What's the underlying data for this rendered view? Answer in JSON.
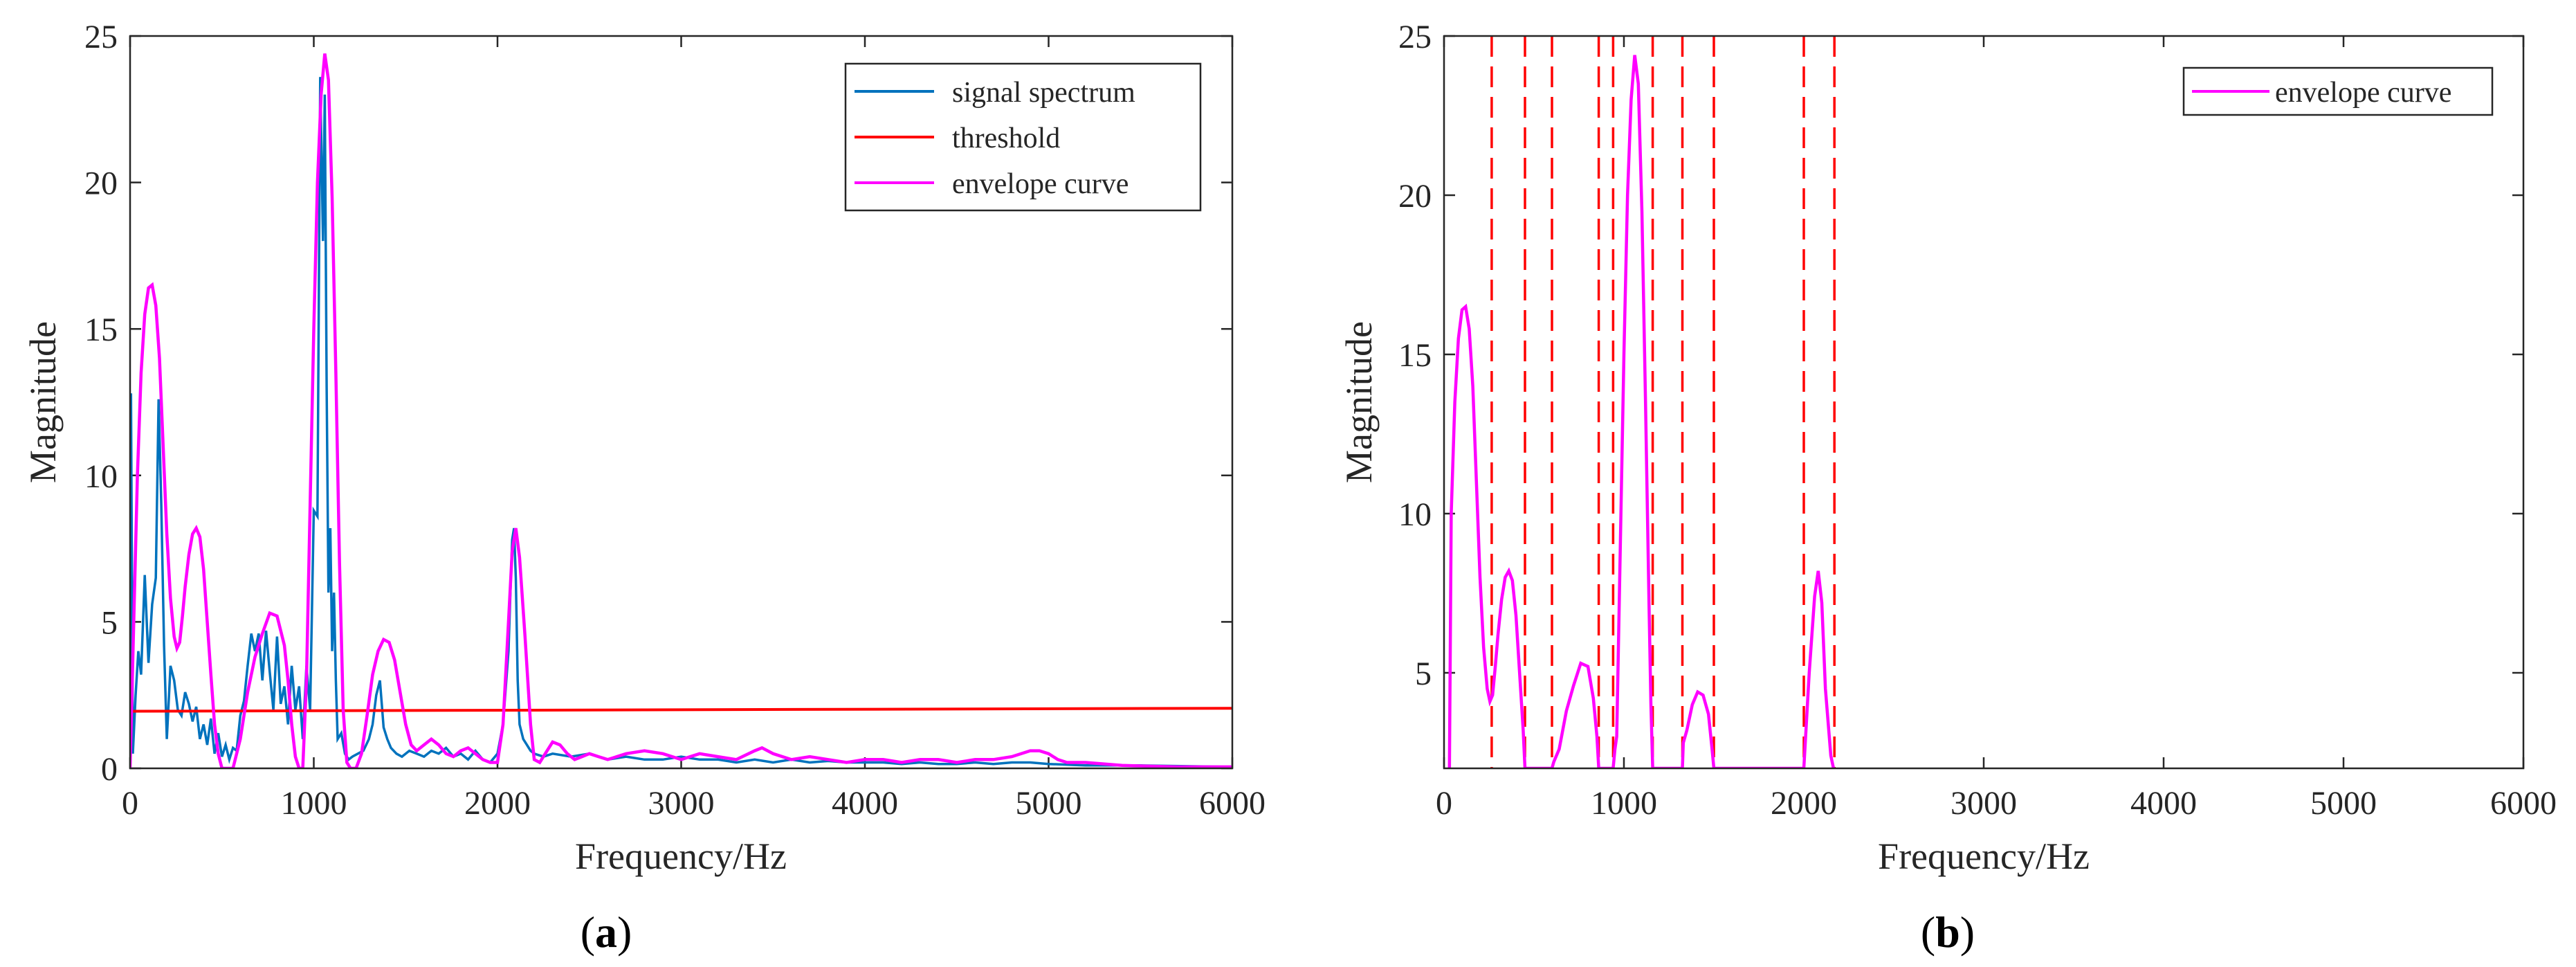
{
  "colors": {
    "spectrum": "#0072BD",
    "threshold": "#FF0000",
    "envelope": "#FF00FF",
    "boundary": "#FF0000",
    "axis": "#262626"
  },
  "chart_data": [
    {
      "type": "line",
      "panel": "a",
      "caption_open": "(",
      "caption_letter": "a",
      "caption_close": ")",
      "xlabel": "Frequency/Hz",
      "ylabel": "Magnitude",
      "xlim": [
        0,
        6000
      ],
      "ylim": [
        0,
        25
      ],
      "xticks": [
        0,
        1000,
        2000,
        3000,
        4000,
        5000,
        6000
      ],
      "yticks": [
        0,
        5,
        10,
        15,
        20,
        25
      ],
      "legend_position": "top-right",
      "legend": [
        "signal spectrum",
        "threshold",
        "envelope curve"
      ],
      "series": [
        {
          "name": "signal spectrum",
          "x": [
            0,
            5,
            15,
            30,
            45,
            60,
            80,
            100,
            120,
            140,
            155,
            170,
            185,
            200,
            220,
            240,
            260,
            280,
            300,
            320,
            340,
            360,
            380,
            400,
            420,
            440,
            460,
            480,
            500,
            520,
            540,
            560,
            580,
            600,
            620,
            640,
            660,
            680,
            700,
            720,
            740,
            760,
            780,
            800,
            820,
            840,
            860,
            880,
            900,
            920,
            940,
            960,
            980,
            1000,
            1020,
            1035,
            1050,
            1060,
            1070,
            1080,
            1090,
            1100,
            1110,
            1120,
            1130,
            1150,
            1170,
            1190,
            1210,
            1240,
            1270,
            1300,
            1320,
            1340,
            1360,
            1380,
            1400,
            1420,
            1450,
            1480,
            1520,
            1560,
            1600,
            1640,
            1680,
            1720,
            1760,
            1800,
            1840,
            1880,
            1920,
            1960,
            2000,
            2030,
            2060,
            2080,
            2090,
            2100,
            2110,
            2120,
            2140,
            2160,
            2180,
            2200,
            2250,
            2300,
            2400,
            2500,
            2600,
            2700,
            2800,
            2900,
            3000,
            3100,
            3200,
            3300,
            3400,
            3500,
            3600,
            3700,
            3800,
            3900,
            4000,
            4100,
            4200,
            4300,
            4400,
            4500,
            4600,
            4700,
            4800,
            4900,
            5000,
            5200,
            5500,
            6000
          ],
          "values": [
            0.3,
            12.8,
            0.5,
            2.5,
            4.0,
            3.2,
            6.6,
            3.6,
            5.6,
            6.5,
            12.6,
            9.0,
            4.2,
            1.0,
            3.5,
            3.0,
            2.0,
            1.8,
            2.6,
            2.2,
            1.6,
            2.1,
            1.0,
            1.5,
            0.8,
            1.7,
            0.5,
            1.2,
            0.4,
            0.8,
            0.3,
            0.7,
            0.6,
            1.8,
            2.3,
            3.5,
            4.6,
            4.0,
            4.6,
            3.0,
            4.7,
            3.3,
            2.0,
            4.5,
            2.2,
            2.8,
            1.5,
            3.5,
            2.0,
            2.8,
            1.0,
            3.5,
            2.0,
            8.8,
            8.6,
            23.6,
            18.0,
            23.0,
            13.0,
            6.0,
            8.2,
            4.0,
            6.0,
            3.0,
            1.0,
            1.2,
            0.5,
            0.3,
            0.4,
            0.5,
            0.6,
            1.0,
            1.5,
            2.5,
            3.0,
            1.4,
            1.0,
            0.7,
            0.5,
            0.4,
            0.6,
            0.5,
            0.4,
            0.6,
            0.5,
            0.7,
            0.4,
            0.5,
            0.3,
            0.6,
            0.3,
            0.2,
            0.5,
            1.5,
            4.0,
            7.8,
            8.2,
            6.5,
            3.0,
            1.5,
            1.0,
            0.8,
            0.6,
            0.5,
            0.4,
            0.5,
            0.4,
            0.5,
            0.3,
            0.4,
            0.3,
            0.3,
            0.4,
            0.3,
            0.3,
            0.2,
            0.3,
            0.2,
            0.3,
            0.2,
            0.25,
            0.2,
            0.2,
            0.2,
            0.15,
            0.2,
            0.15,
            0.15,
            0.2,
            0.15,
            0.2,
            0.2,
            0.15,
            0.1,
            0.1,
            0.05
          ]
        },
        {
          "name": "threshold",
          "x": [
            0,
            6000
          ],
          "values": [
            1.95,
            2.05
          ]
        },
        {
          "name": "envelope curve",
          "x": [
            0,
            20,
            40,
            60,
            80,
            100,
            120,
            140,
            160,
            180,
            200,
            220,
            240,
            255,
            270,
            285,
            300,
            320,
            340,
            360,
            380,
            400,
            420,
            440,
            460,
            480,
            500,
            520,
            560,
            600,
            640,
            680,
            720,
            760,
            800,
            840,
            860,
            880,
            900,
            920,
            940,
            960,
            980,
            1000,
            1020,
            1040,
            1060,
            1080,
            1100,
            1120,
            1140,
            1160,
            1180,
            1200,
            1230,
            1260,
            1290,
            1320,
            1350,
            1380,
            1410,
            1440,
            1470,
            1500,
            1530,
            1560,
            1600,
            1640,
            1680,
            1720,
            1760,
            1800,
            1840,
            1880,
            1920,
            1960,
            2000,
            2030,
            2060,
            2080,
            2100,
            2120,
            2150,
            2180,
            2200,
            2230,
            2260,
            2300,
            2340,
            2380,
            2420,
            2460,
            2500,
            2550,
            2600,
            2700,
            2800,
            2900,
            3000,
            3100,
            3200,
            3300,
            3400,
            3440,
            3500,
            3600,
            3700,
            3800,
            3900,
            4000,
            4100,
            4200,
            4300,
            4400,
            4500,
            4600,
            4700,
            4800,
            4900,
            4950,
            5000,
            5050,
            5100,
            5200,
            5400,
            5700,
            6000
          ],
          "values": [
            0.0,
            5.0,
            10.0,
            13.5,
            15.5,
            16.4,
            16.5,
            15.8,
            14.0,
            11.0,
            8.0,
            5.8,
            4.5,
            4.1,
            4.3,
            5.2,
            6.2,
            7.3,
            8.0,
            8.2,
            7.9,
            6.8,
            5.0,
            3.2,
            1.5,
            0.5,
            0.0,
            0.0,
            0.0,
            1.0,
            2.6,
            3.8,
            4.6,
            5.3,
            5.2,
            4.2,
            3.0,
            1.5,
            0.4,
            0.0,
            0.0,
            3.0,
            9.0,
            15.0,
            20.0,
            23.0,
            24.4,
            23.5,
            19.5,
            13.5,
            7.0,
            2.0,
            0.2,
            0.0,
            0.0,
            0.5,
            1.8,
            3.2,
            4.0,
            4.4,
            4.3,
            3.7,
            2.6,
            1.5,
            0.8,
            0.6,
            0.8,
            1.0,
            0.8,
            0.5,
            0.4,
            0.6,
            0.7,
            0.5,
            0.3,
            0.2,
            0.2,
            1.5,
            5.0,
            7.4,
            8.2,
            7.2,
            4.5,
            1.5,
            0.3,
            0.2,
            0.5,
            0.9,
            0.8,
            0.5,
            0.3,
            0.4,
            0.5,
            0.4,
            0.3,
            0.5,
            0.6,
            0.5,
            0.3,
            0.5,
            0.4,
            0.3,
            0.6,
            0.7,
            0.5,
            0.3,
            0.4,
            0.3,
            0.2,
            0.3,
            0.3,
            0.2,
            0.3,
            0.3,
            0.2,
            0.3,
            0.3,
            0.4,
            0.6,
            0.6,
            0.5,
            0.3,
            0.2,
            0.2,
            0.1,
            0.05,
            0.05
          ]
        }
      ]
    },
    {
      "type": "line",
      "panel": "b",
      "caption_open": "(",
      "caption_letter": "b",
      "caption_close": ")",
      "xlabel": "Frequency/Hz",
      "ylabel": "Magnitude",
      "xlim": [
        0,
        6000
      ],
      "ylim": [
        2,
        25
      ],
      "xticks": [
        0,
        1000,
        2000,
        3000,
        4000,
        5000,
        6000
      ],
      "yticks": [
        5,
        10,
        15,
        20,
        25
      ],
      "legend_position": "top-right",
      "legend": [
        "envelope curve"
      ],
      "boundaries": [
        265,
        450,
        600,
        860,
        940,
        1160,
        1325,
        1500,
        2000,
        2170
      ],
      "series": [
        {
          "name": "envelope curve",
          "x": [
            30,
            40,
            60,
            80,
            100,
            120,
            140,
            160,
            180,
            200,
            220,
            240,
            255,
            270,
            285,
            300,
            320,
            340,
            360,
            380,
            400,
            420,
            440,
            450,
            600,
            610,
            640,
            680,
            720,
            760,
            800,
            830,
            850,
            860,
            940,
            950,
            960,
            980,
            1000,
            1020,
            1040,
            1060,
            1080,
            1100,
            1120,
            1140,
            1150,
            1160,
            1325,
            1330,
            1350,
            1380,
            1410,
            1440,
            1470,
            1490,
            1500,
            2000,
            2010,
            2030,
            2060,
            2080,
            2100,
            2120,
            2150,
            2165,
            2170
          ],
          "values": [
            2.0,
            10.0,
            13.5,
            15.5,
            16.4,
            16.5,
            15.8,
            14.0,
            11.0,
            8.0,
            5.8,
            4.5,
            4.1,
            4.3,
            5.2,
            6.2,
            7.3,
            8.0,
            8.2,
            7.9,
            6.8,
            5.0,
            3.2,
            2.0,
            2.0,
            2.2,
            2.6,
            3.8,
            4.6,
            5.3,
            5.2,
            4.2,
            3.0,
            2.0,
            2.0,
            2.6,
            3.0,
            9.0,
            15.0,
            20.0,
            23.0,
            24.4,
            23.5,
            19.5,
            13.5,
            7.0,
            4.0,
            2.0,
            2.0,
            2.8,
            3.2,
            4.0,
            4.4,
            4.3,
            3.7,
            2.6,
            2.0,
            2.0,
            3.0,
            5.0,
            7.4,
            8.2,
            7.2,
            4.5,
            2.4,
            2.0,
            2.0
          ]
        }
      ]
    }
  ]
}
